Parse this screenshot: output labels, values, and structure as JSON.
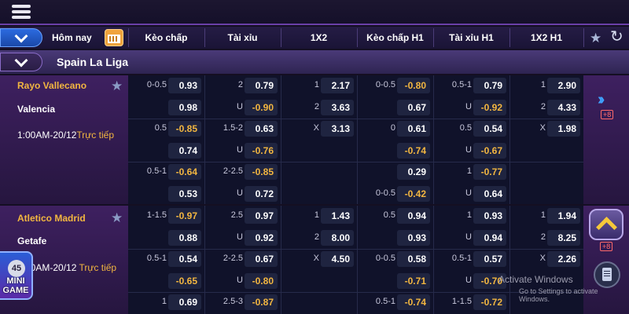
{
  "header": {
    "date_filter_label": "Hôm nay",
    "columns": [
      "Kèo chấp",
      "Tài xỉu",
      "1X2",
      "Kèo chấp H1",
      "Tài xỉu H1",
      "1X2 H1"
    ]
  },
  "icons": {
    "menu": "hamburger-menu-icon",
    "collapse": "chevron-down-icon",
    "calendar": "calendar-icon",
    "favorite": "star-icon",
    "refresh": "refresh-icon",
    "more": "double-chevron-right-icon",
    "scroll_up": "chevron-up-icon",
    "bet_slip": "document-icon"
  },
  "colors": {
    "accent_gold": "#f2b640",
    "primary_blue": "#2c6be0",
    "negative_odds": "#f2b640"
  },
  "league": {
    "name": "Spain La Liga"
  },
  "matches": [
    {
      "home": "Rayo Vallecano",
      "away": "Valencia",
      "time": "1:00AM-20/12",
      "live_label": "Trực tiếp",
      "more": "+8",
      "rows": [
        [
          {
            "l": "0-0.5",
            "v": "0.93"
          },
          {
            "l": "2",
            "v": "0.79"
          },
          {
            "l": "1",
            "v": "2.17"
          },
          {
            "l": "0-0.5",
            "v": "-0.80"
          },
          {
            "l": "0.5-1",
            "v": "0.79"
          },
          {
            "l": "1",
            "v": "2.90"
          }
        ],
        [
          {
            "l": "",
            "v": "0.98"
          },
          {
            "l": "U",
            "v": "-0.90"
          },
          {
            "l": "2",
            "v": "3.63"
          },
          {
            "l": "",
            "v": "0.67"
          },
          {
            "l": "U",
            "v": "-0.92"
          },
          {
            "l": "2",
            "v": "4.33"
          }
        ],
        [
          {
            "l": "0.5",
            "v": "-0.85"
          },
          {
            "l": "1.5-2",
            "v": "0.63"
          },
          {
            "l": "X",
            "v": "3.13"
          },
          {
            "l": "0",
            "v": "0.61"
          },
          {
            "l": "0.5",
            "v": "0.54"
          },
          {
            "l": "X",
            "v": "1.98"
          }
        ],
        [
          {
            "l": "",
            "v": "0.74"
          },
          {
            "l": "U",
            "v": "-0.76"
          },
          null,
          {
            "l": "",
            "v": "-0.74"
          },
          {
            "l": "U",
            "v": "-0.67"
          },
          null
        ],
        [
          {
            "l": "0.5-1",
            "v": "-0.64"
          },
          {
            "l": "2-2.5",
            "v": "-0.85"
          },
          null,
          {
            "l": "",
            "v": "0.29"
          },
          {
            "l": "1",
            "v": "-0.77"
          },
          null
        ],
        [
          {
            "l": "",
            "v": "0.53"
          },
          {
            "l": "U",
            "v": "0.72"
          },
          null,
          {
            "l": "0-0.5",
            "v": "-0.42"
          },
          {
            "l": "U",
            "v": "0.64"
          },
          null
        ]
      ]
    },
    {
      "home": "Atletico Madrid",
      "away": "Getafe",
      "time": "1:00AM-20/12",
      "time_visible": "00AM-20/12",
      "live_label": "Trực tiếp",
      "more": "+8",
      "rows": [
        [
          {
            "l": "1-1.5",
            "v": "-0.97"
          },
          {
            "l": "2.5",
            "v": "0.97"
          },
          {
            "l": "1",
            "v": "1.43"
          },
          {
            "l": "0.5",
            "v": "0.94"
          },
          {
            "l": "1",
            "v": "0.93"
          },
          {
            "l": "1",
            "v": "1.94"
          }
        ],
        [
          {
            "l": "",
            "v": "0.88"
          },
          {
            "l": "U",
            "v": "0.92"
          },
          {
            "l": "2",
            "v": "8.00"
          },
          {
            "l": "",
            "v": "0.93"
          },
          {
            "l": "U",
            "v": "0.94"
          },
          {
            "l": "2",
            "v": "8.25"
          }
        ],
        [
          {
            "l": "0.5-1",
            "v": "0.54"
          },
          {
            "l": "2-2.5",
            "v": "0.67"
          },
          {
            "l": "X",
            "v": "4.50"
          },
          {
            "l": "0-0.5",
            "v": "0.58"
          },
          {
            "l": "0.5-1",
            "v": "0.57"
          },
          {
            "l": "X",
            "v": "2.26"
          }
        ],
        [
          {
            "l": "",
            "v": "-0.65"
          },
          {
            "l": "U",
            "v": "-0.80"
          },
          null,
          {
            "l": "",
            "v": "-0.71"
          },
          {
            "l": "U",
            "v": "-0.70"
          },
          null
        ],
        [
          {
            "l": "1",
            "v": "0.69"
          },
          {
            "l": "2.5-3",
            "v": "-0.87"
          },
          null,
          {
            "l": "0.5-1",
            "v": "-0.74"
          },
          {
            "l": "1-1.5",
            "v": "-0.72"
          },
          null
        ]
      ]
    }
  ],
  "mini_game": {
    "count": "45",
    "label": "MINI GAME"
  },
  "watermark": {
    "title": "Activate Windows",
    "subtitle": "Go to Settings to activate Windows."
  }
}
